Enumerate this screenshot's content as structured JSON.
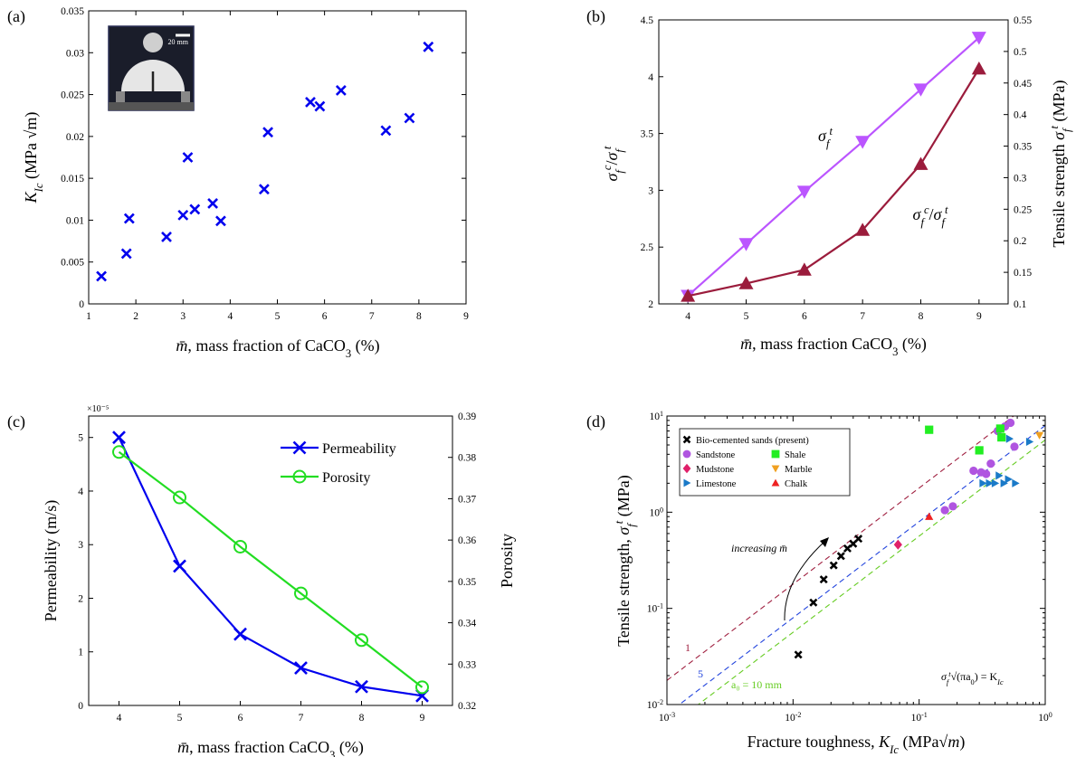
{
  "panels": {
    "a": "(a)",
    "b": "(b)",
    "c": "(c)",
    "d": "(d)"
  },
  "chart_data": [
    {
      "panel": "(a)",
      "type": "scatter",
      "xlabel": "m̄, mass fraction of CaCO₃ (%)",
      "ylabel": "K_Ic (MPa √m)",
      "xlim": [
        1,
        9
      ],
      "ylim": [
        0,
        0.035
      ],
      "xticks": [
        "1",
        "2",
        "3",
        "4",
        "5",
        "6",
        "7",
        "8",
        "9"
      ],
      "yticks": [
        "0",
        "0.005",
        "0.01",
        "0.015",
        "0.02",
        "0.025",
        "0.03",
        "0.035"
      ],
      "inset_scale_bar": "20 mm",
      "marker": "x",
      "color": "#0000ee",
      "points": [
        [
          1.27,
          0.0033
        ],
        [
          1.8,
          0.006
        ],
        [
          1.86,
          0.0102
        ],
        [
          2.65,
          0.008
        ],
        [
          3.0,
          0.0106
        ],
        [
          3.1,
          0.0175
        ],
        [
          3.25,
          0.0113
        ],
        [
          3.63,
          0.012
        ],
        [
          3.8,
          0.0099
        ],
        [
          4.72,
          0.0137
        ],
        [
          4.8,
          0.0205
        ],
        [
          5.7,
          0.0241
        ],
        [
          5.9,
          0.0236
        ],
        [
          6.35,
          0.0255
        ],
        [
          7.3,
          0.0207
        ],
        [
          7.8,
          0.0222
        ],
        [
          8.2,
          0.0307
        ]
      ]
    },
    {
      "panel": "(b)",
      "type": "line",
      "xlabel": "m̄, mass fraction CaCO₃ (%)",
      "ylabel_left": "σ_f^c/σ_f^t",
      "ylabel_right": "Tensile strength σ_f^t (MPa)",
      "x": [
        4,
        5,
        6,
        7,
        8,
        9
      ],
      "xlim": [
        3.5,
        9.5
      ],
      "ylim_left": [
        2,
        4.5
      ],
      "ylim_right": [
        0.1,
        0.55
      ],
      "xticks": [
        "4",
        "5",
        "6",
        "7",
        "8",
        "9"
      ],
      "yticks_left": [
        "2",
        "2.5",
        "3",
        "3.5",
        "4",
        "4.5"
      ],
      "yticks_right": [
        "0.1",
        "0.15",
        "0.2",
        "0.25",
        "0.3",
        "0.35",
        "0.4",
        "0.45",
        "0.5",
        "0.55"
      ],
      "series": [
        {
          "name": "σ_f^t",
          "axis": "right",
          "marker": "triangle-down",
          "color": "#bb55ff",
          "values": [
            0.113,
            0.195,
            0.278,
            0.357,
            0.44,
            0.522
          ]
        },
        {
          "name": "σ_f^c/σ_f^t",
          "axis": "left",
          "marker": "triangle-up",
          "color": "#9b1c3c",
          "values": [
            2.07,
            2.18,
            2.3,
            2.65,
            3.23,
            4.07
          ]
        }
      ],
      "labels": {
        "tensile": "σ",
        "tensile_sub": "f",
        "tensile_sup": "t",
        "ratio_num": "σ",
        "ratio_sub": "f",
        "ratio_sup": "c",
        "ratio_den": "σ",
        "ratio_den_sub": "f",
        "ratio_den_sup": "t"
      }
    },
    {
      "panel": "(c)",
      "type": "line",
      "xlabel": "m̄, mass fraction CaCO₃ (%)",
      "ylabel_left": "Permeability (m/s)",
      "ylabel_right": "Porosity",
      "exponent": "×10⁻⁵",
      "x": [
        4,
        5,
        6,
        7,
        8,
        9
      ],
      "xlim": [
        3.5,
        9.5
      ],
      "ylim_left": [
        0,
        5.4
      ],
      "ylim_right": [
        0.32,
        0.39
      ],
      "xticks": [
        "4",
        "5",
        "6",
        "7",
        "8",
        "9"
      ],
      "yticks_left": [
        "0",
        "1",
        "2",
        "3",
        "4",
        "5"
      ],
      "yticks_right": [
        "0.32",
        "0.33",
        "0.34",
        "0.35",
        "0.36",
        "0.37",
        "0.38",
        "0.39"
      ],
      "series": [
        {
          "name": "Permeability",
          "axis": "left",
          "marker": "x",
          "color": "#0000ee",
          "values": [
            5.0,
            2.6,
            1.33,
            0.7,
            0.35,
            0.18
          ]
        },
        {
          "name": "Porosity",
          "axis": "right",
          "marker": "circle",
          "color": "#22dd22",
          "values": [
            0.3813,
            0.3703,
            0.3584,
            0.3471,
            0.3358,
            0.3244
          ]
        }
      ],
      "legend_position": "top-right"
    },
    {
      "panel": "(d)",
      "type": "scatter",
      "scale": "log-log",
      "xlabel": "Fracture toughness, K_Ic (MPa√m)",
      "ylabel": "Tensile strength, σ_f^t (MPa)",
      "xlim": [
        0.001,
        1
      ],
      "ylim": [
        0.01,
        10
      ],
      "xticks": [
        "10",
        "10",
        "10",
        "10"
      ],
      "xtick_exponents": [
        "-3",
        "-2",
        "-1",
        "0"
      ],
      "yticks": [
        "10",
        "10",
        "10",
        "10"
      ],
      "ytick_exponents": [
        "-2",
        "-1",
        "0",
        "1"
      ],
      "equation": "σ_f^t √(π a₀) = K_Ic",
      "annotation": "increasing m̄",
      "line_labels": [
        "1",
        "5",
        "a₀ = 10 mm"
      ],
      "lines": [
        {
          "label": "1",
          "a0_mm": 1,
          "color": "#a02040"
        },
        {
          "label": "5",
          "a0_mm": 5,
          "color": "#2244dd"
        },
        {
          "label": "a₀ = 10 mm",
          "a0_mm": 10,
          "color": "#66cc22"
        }
      ],
      "legend_position": "top-left",
      "series": [
        {
          "name": "Bio-cemented sands (present)",
          "marker": "x",
          "color": "#000000",
          "points": [
            [
              0.011,
              0.033
            ],
            [
              0.0145,
              0.115
            ],
            [
              0.0175,
              0.2
            ],
            [
              0.021,
              0.28
            ],
            [
              0.024,
              0.35
            ],
            [
              0.027,
              0.42
            ],
            [
              0.03,
              0.47
            ],
            [
              0.033,
              0.53
            ]
          ]
        },
        {
          "name": "Sandstone",
          "marker": "circle",
          "color": "#b055e0",
          "points": [
            [
              0.16,
              1.05
            ],
            [
              0.185,
              1.15
            ],
            [
              0.27,
              2.7
            ],
            [
              0.31,
              2.6
            ],
            [
              0.34,
              2.5
            ],
            [
              0.37,
              3.2
            ],
            [
              0.48,
              7.8
            ],
            [
              0.53,
              8.5
            ],
            [
              0.57,
              4.8
            ],
            [
              0.42,
              7.0
            ]
          ]
        },
        {
          "name": "Mudstone",
          "marker": "diamond",
          "color": "#e0206a",
          "points": [
            [
              0.068,
              0.46
            ]
          ]
        },
        {
          "name": "Limestone",
          "marker": "triangle-right",
          "color": "#1a7ac8",
          "points": [
            [
              0.32,
              2.0
            ],
            [
              0.36,
              2.0
            ],
            [
              0.4,
              2.0
            ],
            [
              0.43,
              2.4
            ],
            [
              0.47,
              2.0
            ],
            [
              0.51,
              2.2
            ],
            [
              0.58,
              2.0
            ],
            [
              0.52,
              5.8
            ],
            [
              0.75,
              5.4
            ]
          ]
        },
        {
          "name": "Shale",
          "marker": "square",
          "color": "#22ee22",
          "points": [
            [
              0.12,
              7.2
            ],
            [
              0.3,
              4.4
            ],
            [
              0.44,
              7.4
            ],
            [
              0.45,
              6.0
            ]
          ]
        },
        {
          "name": "Marble",
          "marker": "triangle-down",
          "color": "#f0a020",
          "points": [
            [
              0.9,
              6.3
            ]
          ]
        },
        {
          "name": "Chalk",
          "marker": "triangle-up",
          "color": "#ee2222",
          "points": [
            [
              0.12,
              0.9
            ]
          ]
        }
      ]
    }
  ]
}
